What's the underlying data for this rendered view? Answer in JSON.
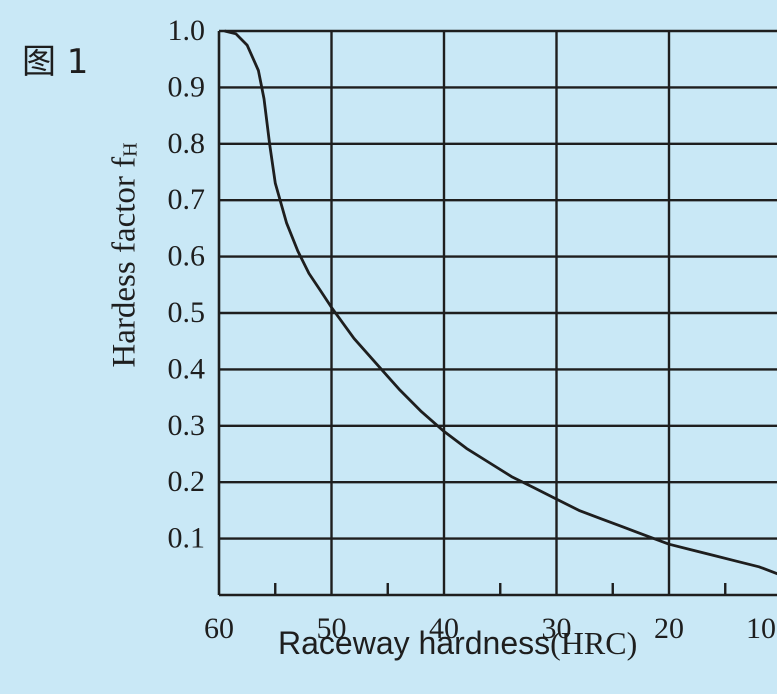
{
  "figure": {
    "label": "图 1"
  },
  "chart_data": {
    "type": "line",
    "xlabel_main": "Raceway hardness",
    "xlabel_unit": "(HRC)",
    "ylabel_main": "Hardess factor f",
    "ylabel_sub": "H",
    "x_ticks": [
      "60",
      "50",
      "40",
      "30",
      "20",
      "10"
    ],
    "y_ticks": [
      "1.0",
      "0.9",
      "0.8",
      "0.7",
      "0.6",
      "0.5",
      "0.4",
      "0.3",
      "0.2",
      "0.1"
    ],
    "xlim": [
      60,
      9
    ],
    "ylim": [
      0,
      1.0
    ],
    "x_reversed": true,
    "grid": true,
    "series": [
      {
        "x": [
          59.5,
          58.5,
          57.5,
          56.5,
          56,
          55.5,
          55,
          54,
          53,
          52,
          51,
          50,
          48,
          46,
          44,
          42,
          40,
          38,
          36,
          34,
          32,
          30,
          28,
          26,
          24,
          22,
          20,
          18,
          16,
          14,
          12,
          10,
          9
        ],
        "y": [
          1.0,
          0.995,
          0.975,
          0.93,
          0.88,
          0.8,
          0.73,
          0.66,
          0.61,
          0.57,
          0.54,
          0.51,
          0.455,
          0.41,
          0.365,
          0.325,
          0.29,
          0.26,
          0.235,
          0.21,
          0.19,
          0.17,
          0.15,
          0.135,
          0.12,
          0.105,
          0.09,
          0.08,
          0.07,
          0.06,
          0.05,
          0.035,
          0.03
        ]
      }
    ]
  },
  "colors": {
    "background": "#c9e8f6",
    "ink": "#1e1e1e"
  }
}
